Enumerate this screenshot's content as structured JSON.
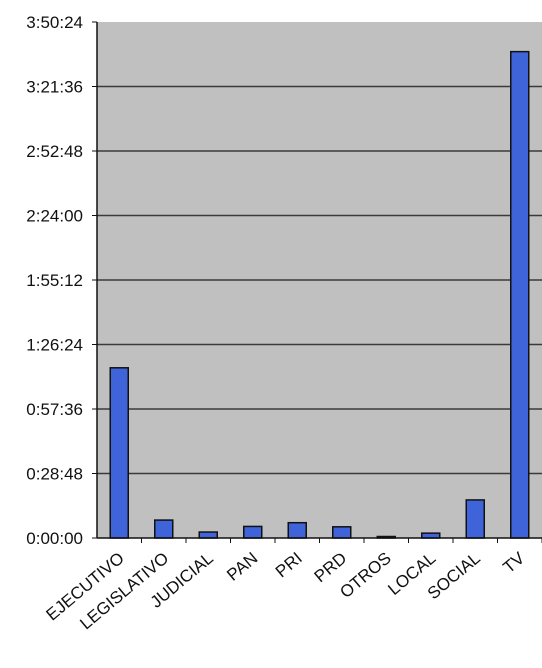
{
  "chart_data": {
    "type": "bar",
    "title": "",
    "xlabel": "",
    "ylabel": "",
    "categories": [
      "EJECUTIVO",
      "LEGISLATIVO",
      "JUDICIAL",
      "PAN",
      "PRI",
      "PRD",
      "OTROS",
      "LOCAL",
      "SOCIAL",
      "TV"
    ],
    "values_seconds": [
      4560,
      480,
      160,
      310,
      410,
      300,
      40,
      130,
      1020,
      13030
    ],
    "values": [
      "1:16:00",
      "0:08:00",
      "0:02:40",
      "0:05:10",
      "0:06:50",
      "0:05:00",
      "0:00:40",
      "0:02:10",
      "0:17:00",
      "3:37:10"
    ],
    "y_ticks": [
      "0:00:00",
      "0:28:48",
      "0:57:36",
      "1:26:24",
      "1:55:12",
      "2:24:00",
      "2:52:48",
      "3:21:36",
      "3:50:24"
    ],
    "ylim_seconds": [
      0,
      13824
    ],
    "grid": true,
    "legend": "none",
    "colors": {
      "bar": "#3f63d8",
      "bar_border": "#111111",
      "plot_background": "#c0c0c0",
      "gridline": "#3a3a3a",
      "axis": "#111111"
    }
  }
}
